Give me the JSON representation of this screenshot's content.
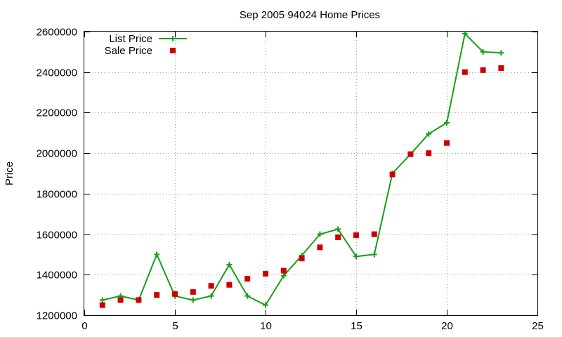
{
  "chart_data": {
    "type": "line",
    "title": "Sep 2005 94024 Home Prices",
    "xlabel": "",
    "ylabel": "Price",
    "xlim": [
      0,
      25
    ],
    "ylim": [
      1200000,
      2600000
    ],
    "xticks": [
      "0",
      "5",
      "10",
      "15",
      "20",
      "25"
    ],
    "yticks": [
      "1200000",
      "1400000",
      "1600000",
      "1800000",
      "2000000",
      "2200000",
      "2400000",
      "2600000"
    ],
    "grid": true,
    "legend_position": "top-left",
    "x": [
      1,
      2,
      3,
      4,
      5,
      6,
      7,
      8,
      9,
      10,
      11,
      12,
      13,
      14,
      15,
      16,
      17,
      18,
      19,
      20,
      21,
      22,
      23
    ],
    "series": [
      {
        "name": "List Price",
        "style": "line-with-plus-markers",
        "color": "#16a016",
        "values": [
          1275000,
          1295000,
          1275000,
          1500000,
          1295000,
          1275000,
          1295000,
          1450000,
          1295000,
          1250000,
          1395000,
          1495000,
          1600000,
          1625000,
          1490000,
          1500000,
          1900000,
          1995000,
          2095000,
          2150000,
          2590000,
          2500000,
          2495000
        ]
      },
      {
        "name": "Sale Price",
        "style": "square-markers",
        "color": "#cc0000",
        "values": [
          1250000,
          1275000,
          1275000,
          1300000,
          1305000,
          1315000,
          1345000,
          1350000,
          1380000,
          1405000,
          1420000,
          1480000,
          1535000,
          1585000,
          1595000,
          1600000,
          1895000,
          1995000,
          2000000,
          2050000,
          2400000,
          2410000,
          2420000
        ]
      }
    ]
  }
}
